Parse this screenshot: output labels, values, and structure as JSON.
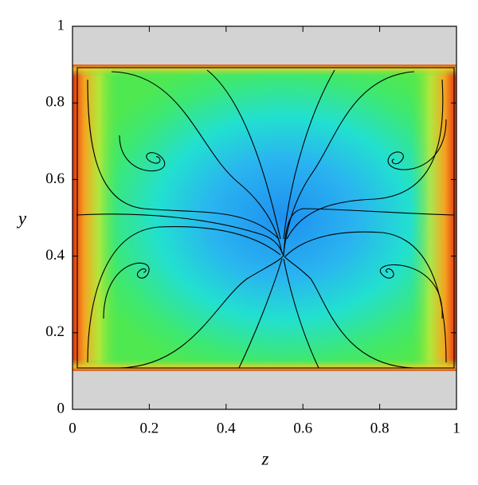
{
  "chart_data": {
    "type": "streamline",
    "x_label": "z",
    "y_label": "y",
    "xlim": [
      0,
      1
    ],
    "ylim": [
      0,
      1
    ],
    "xticks": [
      0,
      0.2,
      0.4,
      0.6,
      0.8,
      1
    ],
    "yticks": [
      0,
      0.2,
      0.4,
      0.6,
      0.8,
      1
    ],
    "walls": [
      [
        0,
        0.1
      ],
      [
        0.9,
        1
      ]
    ],
    "wall_color": "#d3d3d3"
  }
}
